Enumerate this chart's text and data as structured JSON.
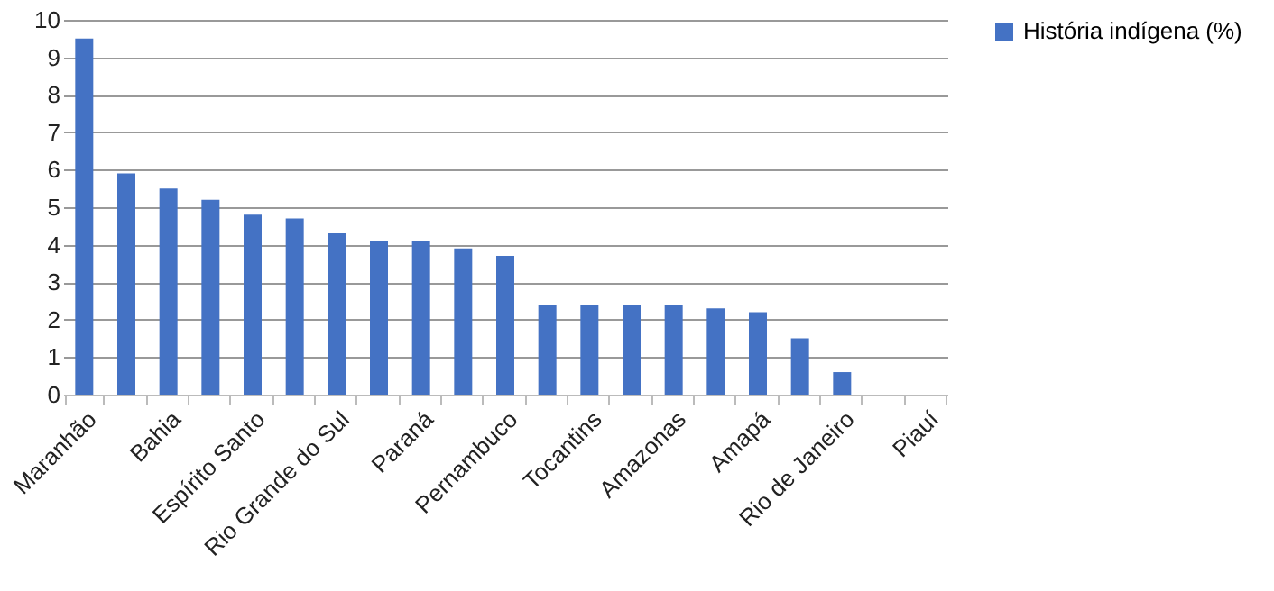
{
  "chart_data": {
    "type": "bar",
    "categories": [
      "Maranhão",
      null,
      "Bahia",
      null,
      "Espírito Santo",
      null,
      "Rio Grande do Sul",
      null,
      "Paraná",
      null,
      "Pernambuco",
      null,
      "Tocantins",
      null,
      "Amazonas",
      null,
      "Amapá",
      null,
      "Rio de Janeiro",
      null,
      "Piauí"
    ],
    "series": [
      {
        "name": "História indígena (%)",
        "color": "#4472c4",
        "values": [
          9.5,
          5.9,
          5.5,
          5.2,
          4.8,
          4.7,
          4.3,
          4.1,
          4.1,
          3.9,
          3.7,
          2.4,
          2.4,
          2.4,
          2.4,
          2.3,
          2.2,
          1.5,
          0.6,
          0,
          0
        ]
      }
    ],
    "ylim": [
      0,
      10
    ],
    "yticks": [
      0,
      1,
      2,
      3,
      4,
      5,
      6,
      7,
      8,
      9,
      10
    ],
    "grid": "y",
    "legend": "right"
  }
}
